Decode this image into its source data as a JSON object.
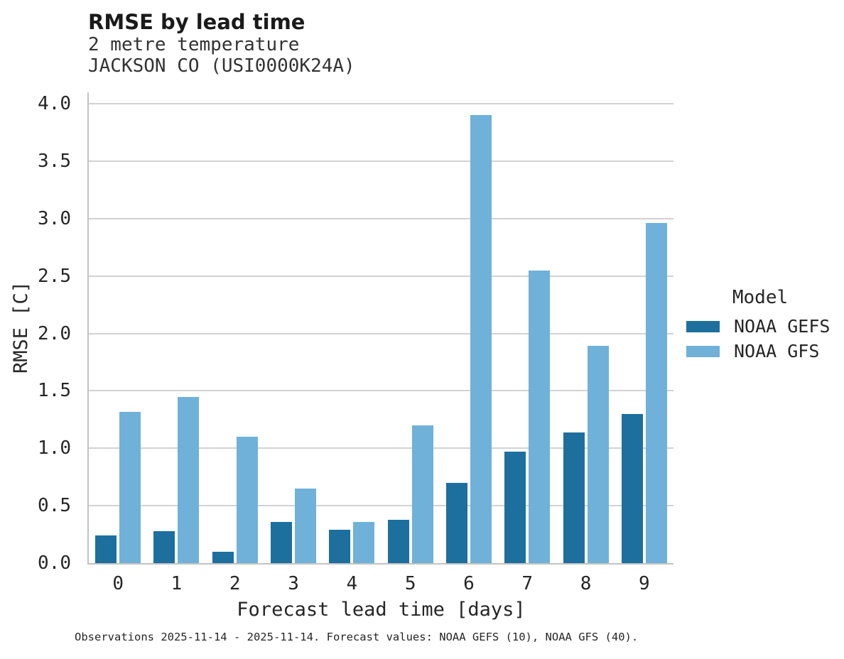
{
  "header": {
    "title": "RMSE by lead time",
    "subtitle1": "2 metre temperature",
    "subtitle2": "JACKSON CO (USI0000K24A)"
  },
  "chart_data": {
    "type": "bar",
    "title": "RMSE by lead time",
    "subtitle": [
      "2 metre temperature",
      "JACKSON CO (USI0000K24A)"
    ],
    "categories": [
      "0",
      "1",
      "2",
      "3",
      "4",
      "5",
      "6",
      "7",
      "8",
      "9"
    ],
    "series": [
      {
        "name": "NOAA GEFS",
        "color": "#1d6f9e",
        "values": [
          0.24,
          0.28,
          0.1,
          0.36,
          0.29,
          0.38,
          0.7,
          0.97,
          1.14,
          1.3
        ]
      },
      {
        "name": "NOAA GFS",
        "color": "#70b1d9",
        "values": [
          1.32,
          1.45,
          1.1,
          0.65,
          0.36,
          1.2,
          3.9,
          2.55,
          1.89,
          2.96
        ]
      }
    ],
    "xlabel": "Forecast lead time [days]",
    "ylabel": "RMSE [C]",
    "ylim": [
      0,
      4.1
    ],
    "yticks": [
      0.0,
      0.5,
      1.0,
      1.5,
      2.0,
      2.5,
      3.0,
      3.5,
      4.0
    ],
    "grid": true,
    "legend_title": "Model",
    "legend_position": "right"
  },
  "legend": {
    "title": "Model",
    "items": [
      {
        "label": "NOAA GEFS",
        "color": "#1d6f9e"
      },
      {
        "label": "NOAA GFS",
        "color": "#70b1d9"
      }
    ]
  },
  "caption": "Observations 2025-11-14 - 2025-11-14. Forecast values: NOAA GEFS (10), NOAA GFS (40)."
}
